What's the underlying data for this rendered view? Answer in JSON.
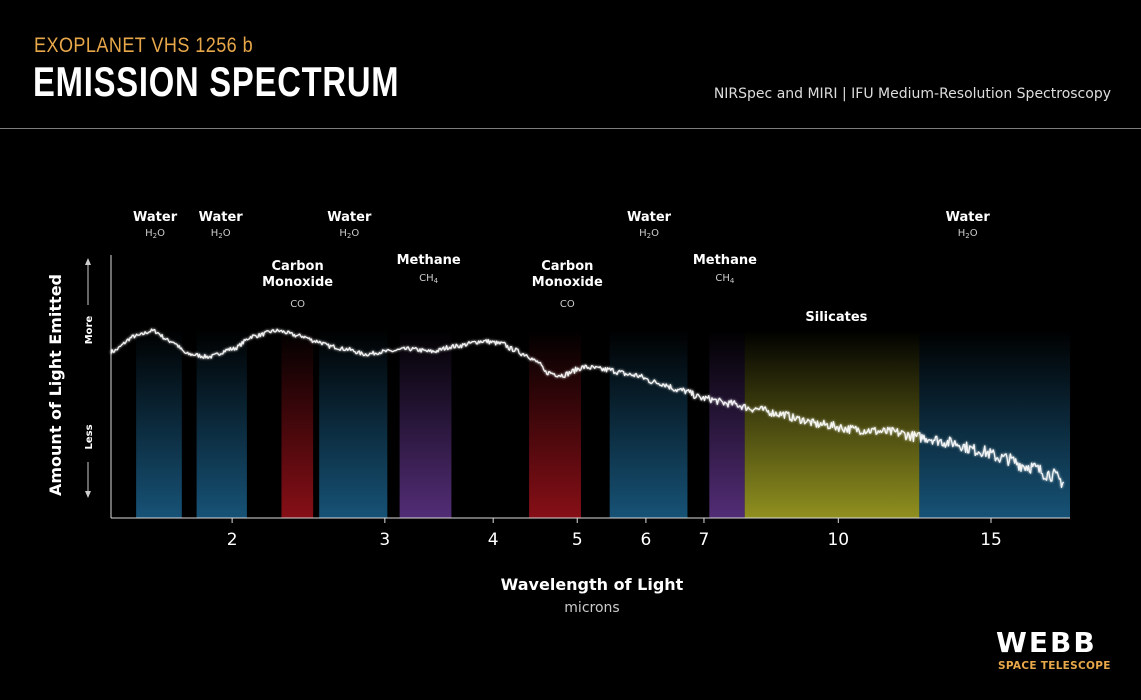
{
  "header": {
    "kicker": "EXOPLANET VHS 1256 b",
    "title": "EMISSION SPECTRUM",
    "subtitle": "NIRSpec and MIRI | IFU Medium-Resolution Spectroscopy"
  },
  "logo": {
    "wordmark": "WEBB",
    "sub": "SPACE TELESCOPE"
  },
  "colors": {
    "water": "#1e6e9e",
    "carbon_monoxide": "#b4141e",
    "methane": "#6e3c9e",
    "silicates": "#b4b428",
    "accent": "#e8a84a"
  },
  "chart_data": {
    "type": "line",
    "xlabel": "Wavelength of Light",
    "xunit": "microns",
    "ylabel": "Amount of Light Emitted",
    "y_more": "More",
    "y_less": "Less",
    "x_scale": "log",
    "xlim": [
      1.45,
      18.5
    ],
    "ylim": [
      0,
      1
    ],
    "x_ticks": [
      2,
      3,
      4,
      5,
      6,
      7,
      10,
      15
    ],
    "series": [
      {
        "points": [
          [
            1.45,
            0.64
          ],
          [
            1.55,
            0.7
          ],
          [
            1.62,
            0.72
          ],
          [
            1.7,
            0.68
          ],
          [
            1.78,
            0.63
          ],
          [
            1.88,
            0.62
          ],
          [
            2.0,
            0.65
          ],
          [
            2.12,
            0.7
          ],
          [
            2.25,
            0.72
          ],
          [
            2.4,
            0.7
          ],
          [
            2.5,
            0.68
          ],
          [
            2.6,
            0.66
          ],
          [
            2.7,
            0.65
          ],
          [
            2.85,
            0.63
          ],
          [
            3.0,
            0.64
          ],
          [
            3.2,
            0.65
          ],
          [
            3.4,
            0.64
          ],
          [
            3.6,
            0.66
          ],
          [
            3.9,
            0.68
          ],
          [
            4.1,
            0.67
          ],
          [
            4.2,
            0.65
          ],
          [
            4.35,
            0.63
          ],
          [
            4.5,
            0.6
          ],
          [
            4.6,
            0.56
          ],
          [
            4.8,
            0.55
          ],
          [
            5.1,
            0.58
          ],
          [
            5.4,
            0.57
          ],
          [
            5.8,
            0.55
          ],
          [
            6.2,
            0.52
          ],
          [
            6.6,
            0.49
          ],
          [
            7.0,
            0.46
          ],
          [
            7.5,
            0.44
          ],
          [
            8.0,
            0.42
          ],
          [
            8.6,
            0.4
          ],
          [
            9.0,
            0.38
          ],
          [
            9.5,
            0.36
          ],
          [
            10.5,
            0.34
          ],
          [
            11.5,
            0.33
          ],
          [
            12.5,
            0.31
          ],
          [
            13.5,
            0.29
          ],
          [
            14.5,
            0.26
          ],
          [
            15.5,
            0.23
          ],
          [
            16.5,
            0.2
          ],
          [
            17.5,
            0.17
          ],
          [
            18.2,
            0.14
          ]
        ]
      }
    ],
    "bands": [
      {
        "type": "water",
        "range": [
          1.55,
          1.75
        ]
      },
      {
        "type": "water",
        "range": [
          1.82,
          2.08
        ]
      },
      {
        "type": "carbon_monoxide",
        "range": [
          2.28,
          2.48
        ]
      },
      {
        "type": "water",
        "range": [
          2.52,
          3.02
        ]
      },
      {
        "type": "methane",
        "range": [
          3.12,
          3.58
        ]
      },
      {
        "type": "carbon_monoxide",
        "range": [
          4.4,
          5.05
        ]
      },
      {
        "type": "water",
        "range": [
          5.45,
          6.7
        ]
      },
      {
        "type": "methane",
        "range": [
          7.1,
          7.8
        ]
      },
      {
        "type": "silicates",
        "range": [
          7.8,
          12.4
        ]
      },
      {
        "type": "water",
        "range": [
          12.4,
          18.5
        ]
      }
    ],
    "labels": [
      {
        "name": "Water",
        "formula": "H2O",
        "x": 1.63,
        "row": "top"
      },
      {
        "name": "Water",
        "formula": "H2O",
        "x": 1.94,
        "row": "top"
      },
      {
        "name": "Water",
        "formula": "H2O",
        "x": 2.73,
        "row": "top"
      },
      {
        "name": "Water",
        "formula": "H2O",
        "x": 6.05,
        "row": "top"
      },
      {
        "name": "Water",
        "formula": "H2O",
        "x": 14.1,
        "row": "top"
      },
      {
        "name": "Carbon Monoxide",
        "formula": "CO",
        "x": 2.38,
        "row": "mid"
      },
      {
        "name": "Carbon Monoxide",
        "formula": "CO",
        "x": 4.87,
        "row": "mid"
      },
      {
        "name": "Methane",
        "formula": "CH4",
        "x": 3.37,
        "row": "methane"
      },
      {
        "name": "Methane",
        "formula": "CH4",
        "x": 7.4,
        "row": "methane"
      },
      {
        "name": "Silicates",
        "formula": "",
        "x": 9.95,
        "row": "silicates"
      }
    ]
  }
}
